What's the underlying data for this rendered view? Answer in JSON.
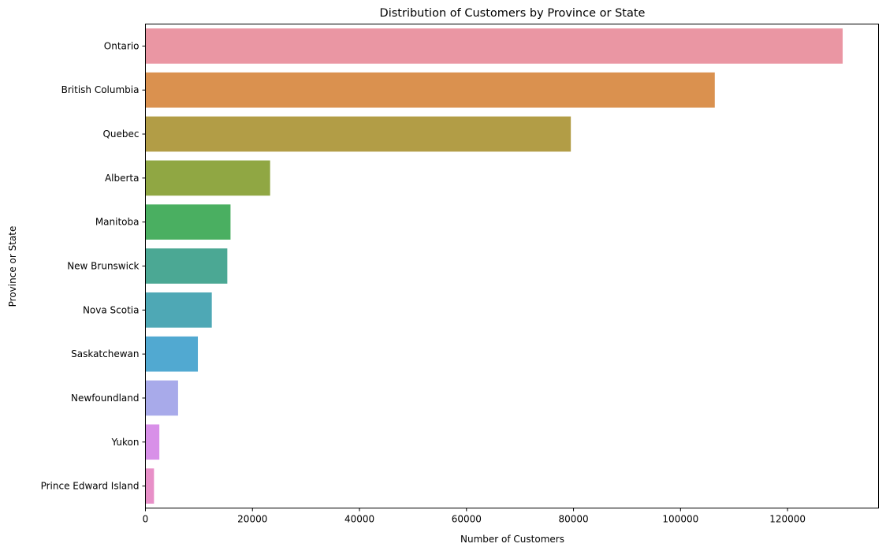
{
  "chart_data": {
    "type": "bar",
    "orientation": "horizontal",
    "title": "Distribution of Customers by Province or State",
    "xlabel": "Number of Customers",
    "ylabel": "Province or State",
    "categories": [
      "Ontario",
      "British Columbia",
      "Quebec",
      "Alberta",
      "Manitoba",
      "New Brunswick",
      "Nova Scotia",
      "Saskatchewan",
      "Newfoundland",
      "Yukon",
      "Prince Edward Island"
    ],
    "values": [
      130300,
      106400,
      79500,
      23300,
      15900,
      15300,
      12400,
      9800,
      6100,
      2600,
      1600
    ],
    "colors": [
      "#ea96a3",
      "#da914f",
      "#b29d46",
      "#90a743",
      "#4aaf61",
      "#4ba894",
      "#4ea8b5",
      "#51a9d1",
      "#a8aaea",
      "#d890e8",
      "#e890c8"
    ],
    "xlim": [
      0,
      137000
    ],
    "xticks": [
      0,
      20000,
      40000,
      60000,
      80000,
      100000,
      120000
    ],
    "xtick_labels": [
      "0",
      "20000",
      "40000",
      "60000",
      "80000",
      "100000",
      "120000"
    ],
    "grid": false,
    "legend": "none"
  }
}
